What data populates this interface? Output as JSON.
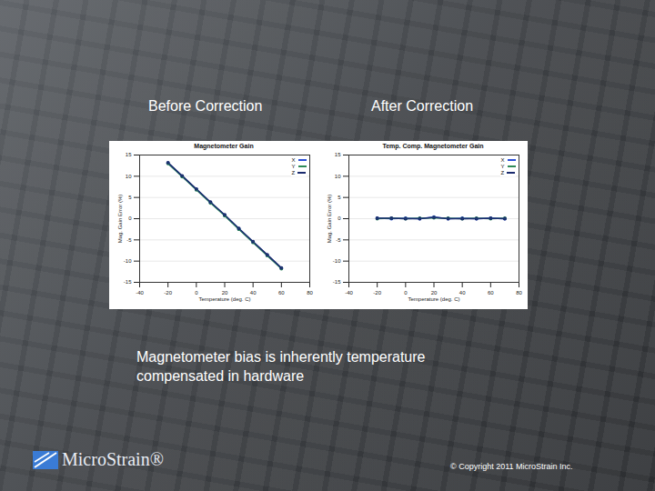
{
  "slide": {
    "headings": [
      "Before Correction",
      "After Correction"
    ],
    "caption": "Magnetometer bias is inherently temperature compensated in hardware",
    "logo": "MicroStrain®",
    "copyright": "© Copyright 2011 MicroStrain Inc."
  },
  "chart_data": [
    {
      "type": "line",
      "title": "Magnetometer Gain",
      "x_label": "Temperature (deg. C)",
      "y_label": "Mag. Gain Error (%)",
      "x": [
        -20,
        -10,
        0,
        10,
        20,
        30,
        40,
        50,
        60
      ],
      "series": [
        {
          "name": "X",
          "color": "#2b4fd6",
          "values": [
            13.1,
            10.0,
            6.9,
            3.8,
            0.8,
            -2.4,
            -5.5,
            -8.6,
            -11.7
          ]
        },
        {
          "name": "Y",
          "color": "#2e8b57",
          "values": [
            13.0,
            9.9,
            6.8,
            3.7,
            0.7,
            -2.5,
            -5.6,
            -8.7,
            -11.8
          ]
        },
        {
          "name": "Z",
          "color": "#1a2a6e",
          "values": [
            13.2,
            10.1,
            7.0,
            3.9,
            0.9,
            -2.3,
            -5.4,
            -8.5,
            -11.6
          ]
        }
      ],
      "xlim": [
        -40,
        80
      ],
      "xticks": [
        -40,
        -20,
        0,
        20,
        40,
        60,
        80
      ],
      "ylim": [
        -15,
        15
      ],
      "yticks": [
        -15,
        -10,
        -5,
        0,
        5,
        10,
        15
      ],
      "grid": true,
      "legend": "upper right",
      "marker": "circle"
    },
    {
      "type": "line",
      "title": "Temp. Comp. Magnetometer Gain",
      "x_label": "Temperature (deg. C)",
      "y_label": "Mag. Gain Error (%)",
      "x": [
        -20,
        -10,
        0,
        10,
        20,
        30,
        40,
        50,
        60,
        70
      ],
      "series": [
        {
          "name": "X",
          "color": "#2b4fd6",
          "values": [
            0.1,
            0.0,
            0.1,
            0.0,
            0.4,
            0.0,
            0.1,
            0.0,
            0.1,
            0.0
          ]
        },
        {
          "name": "Y",
          "color": "#2e8b57",
          "values": [
            0.0,
            0.1,
            0.0,
            0.1,
            0.2,
            0.1,
            0.0,
            0.1,
            0.0,
            0.1
          ]
        },
        {
          "name": "Z",
          "color": "#1a2a6e",
          "values": [
            0.1,
            0.1,
            0.0,
            0.0,
            0.3,
            0.0,
            0.0,
            0.0,
            0.1,
            0.0
          ]
        }
      ],
      "xlim": [
        -40,
        80
      ],
      "xticks": [
        -40,
        -20,
        0,
        20,
        40,
        60,
        80
      ],
      "ylim": [
        -15,
        15
      ],
      "yticks": [
        -15,
        -10,
        -5,
        0,
        5,
        10,
        15
      ],
      "grid": true,
      "legend": "upper right",
      "marker": "circle"
    }
  ]
}
